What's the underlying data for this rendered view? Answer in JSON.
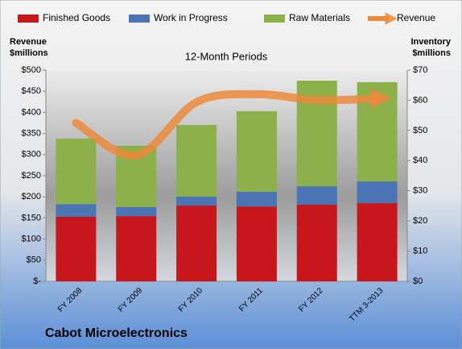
{
  "chart_data": {
    "type": "bar",
    "stacked": true,
    "title": "12-Month Periods",
    "company": "Cabot Microelectronics",
    "y_label": [
      "Revenue",
      "$millions"
    ],
    "y2_label": [
      "Inventory",
      "$millions"
    ],
    "categories": [
      "FY 2008",
      "FY 2009",
      "FY 2010",
      "FY 2011",
      "FY 2012",
      "TTM 3-2013"
    ],
    "series": [
      {
        "name": "Finished Goods",
        "type": "bar",
        "axis": "y2",
        "color": "#c8161d",
        "values": [
          21.4,
          21.6,
          25.1,
          24.8,
          25.4,
          25.9
        ]
      },
      {
        "name": "Work in Progress",
        "type": "bar",
        "axis": "y2",
        "color": "#4a74b4",
        "values": [
          4.2,
          3.0,
          3.0,
          4.9,
          6.1,
          7.2
        ]
      },
      {
        "name": "Raw Materials",
        "type": "bar",
        "axis": "y2",
        "color": "#8cb04a",
        "values": [
          21.7,
          20.3,
          23.7,
          26.7,
          35.0,
          32.9
        ]
      },
      {
        "name": "Revenue",
        "type": "line",
        "color": "#ec8a3c",
        "values": [
          375,
          298,
          424,
          443,
          429,
          433
        ]
      }
    ],
    "ylim": [
      0,
      500
    ],
    "yticks": [
      {
        "value": 0,
        "label": "$-"
      },
      {
        "value": 50,
        "label": "$50"
      },
      {
        "value": 100,
        "label": "$100"
      },
      {
        "value": 150,
        "label": "$150"
      },
      {
        "value": 200,
        "label": "$200"
      },
      {
        "value": 250,
        "label": "$250"
      },
      {
        "value": 300,
        "label": "$300"
      },
      {
        "value": 350,
        "label": "$350"
      },
      {
        "value": 400,
        "label": "$400"
      },
      {
        "value": 450,
        "label": "$450"
      },
      {
        "value": 500,
        "label": "$500"
      }
    ],
    "y2lim": [
      0,
      70
    ],
    "y2ticks": [
      {
        "value": 0,
        "label": "$0"
      },
      {
        "value": 10,
        "label": "$10"
      },
      {
        "value": 20,
        "label": "$20"
      },
      {
        "value": 30,
        "label": "$30"
      },
      {
        "value": 40,
        "label": "$40"
      },
      {
        "value": 50,
        "label": "$50"
      },
      {
        "value": 60,
        "label": "$60"
      },
      {
        "value": 70,
        "label": "$70"
      }
    ],
    "legend": "top"
  }
}
